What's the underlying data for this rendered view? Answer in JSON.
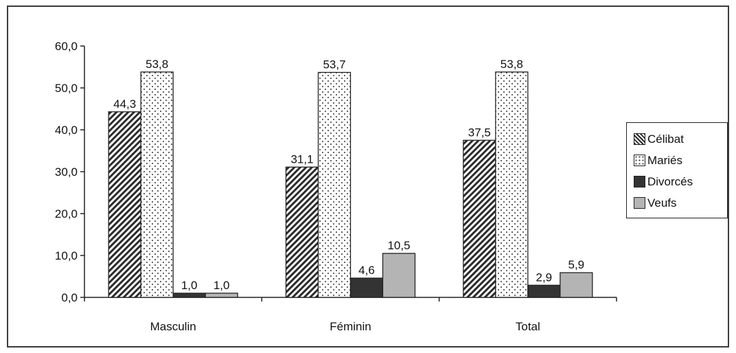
{
  "chart_data": {
    "type": "bar",
    "categories": [
      "Masculin",
      "Féminin",
      "Total"
    ],
    "series": [
      {
        "name": "Célibat",
        "values": [
          44.3,
          31.1,
          37.5
        ],
        "value_labels": [
          "44,3",
          "31,1",
          "37,5"
        ],
        "pattern": "diagonal-hatch"
      },
      {
        "name": "Mariés",
        "values": [
          53.8,
          53.7,
          53.8
        ],
        "value_labels": [
          "53,8",
          "53,7",
          "53,8"
        ],
        "pattern": "dots"
      },
      {
        "name": "Divorcés",
        "values": [
          1.0,
          4.6,
          2.9
        ],
        "value_labels": [
          "1,0",
          "4,6",
          "2,9"
        ],
        "color": "#333333"
      },
      {
        "name": "Veufs",
        "values": [
          1.0,
          10.5,
          5.9
        ],
        "value_labels": [
          "1,0",
          "10,5",
          "5,9"
        ],
        "color": "#b4b4b4"
      }
    ],
    "yticks": [
      "0,0",
      "10,0",
      "20,0",
      "30,0",
      "40,0",
      "50,0",
      "60,0"
    ],
    "ylim": [
      0,
      60
    ],
    "grid": false,
    "legend": "right",
    "title": "",
    "xlabel": "",
    "ylabel": ""
  }
}
